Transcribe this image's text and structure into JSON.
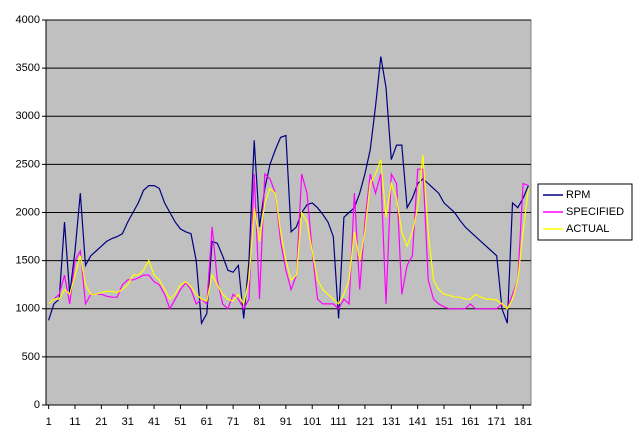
{
  "chart_data": {
    "type": "line",
    "x": [
      1,
      3,
      5,
      7,
      9,
      11,
      13,
      15,
      17,
      19,
      21,
      23,
      25,
      27,
      29,
      31,
      33,
      35,
      37,
      39,
      41,
      43,
      45,
      47,
      49,
      51,
      53,
      55,
      57,
      59,
      61,
      63,
      65,
      67,
      69,
      71,
      73,
      75,
      77,
      79,
      81,
      83,
      85,
      87,
      89,
      91,
      93,
      95,
      97,
      99,
      101,
      103,
      105,
      107,
      109,
      111,
      113,
      115,
      117,
      119,
      121,
      123,
      125,
      127,
      129,
      131,
      133,
      135,
      137,
      139,
      141,
      143,
      145,
      147,
      149,
      151,
      153,
      155,
      157,
      159,
      161,
      163,
      165,
      167,
      169,
      171,
      173,
      175,
      177,
      179,
      181,
      183
    ],
    "series": [
      {
        "name": "RPM",
        "color": "#000080",
        "values": [
          880,
          1050,
          1100,
          1900,
          1150,
          1600,
          2200,
          1450,
          1550,
          1600,
          1650,
          1700,
          1730,
          1750,
          1780,
          1900,
          2000,
          2100,
          2230,
          2280,
          2280,
          2250,
          2100,
          2000,
          1900,
          1830,
          1800,
          1780,
          1500,
          850,
          950,
          1700,
          1680,
          1550,
          1400,
          1380,
          1450,
          900,
          1500,
          2750,
          1850,
          2250,
          2500,
          2650,
          2780,
          2800,
          1800,
          1850,
          2000,
          2080,
          2100,
          2050,
          1980,
          1900,
          1750,
          900,
          1950,
          2000,
          2050,
          2200,
          2400,
          2650,
          3100,
          3620,
          3300,
          2550,
          2700,
          2700,
          2050,
          2150,
          2300,
          2350,
          2300,
          2250,
          2200,
          2100,
          2050,
          2000,
          1920,
          1850,
          1800,
          1750,
          1700,
          1650,
          1600,
          1550,
          1000,
          850,
          2100,
          2050,
          2150,
          2280
        ]
      },
      {
        "name": "SPECIFIED",
        "color": "#ff00ff",
        "values": [
          1050,
          1100,
          1150,
          1350,
          1050,
          1500,
          1600,
          1050,
          1150,
          1150,
          1150,
          1130,
          1120,
          1120,
          1250,
          1300,
          1300,
          1320,
          1350,
          1350,
          1280,
          1250,
          1150,
          1000,
          1100,
          1200,
          1270,
          1200,
          1050,
          1100,
          1050,
          1850,
          1300,
          1050,
          1000,
          1150,
          1100,
          1000,
          1100,
          2400,
          1100,
          2400,
          2350,
          2200,
          1700,
          1400,
          1200,
          1350,
          2400,
          2200,
          1600,
          1100,
          1050,
          1050,
          1050,
          1000,
          1100,
          1050,
          2200,
          1200,
          1900,
          2400,
          2200,
          2400,
          1050,
          2400,
          2300,
          1150,
          1450,
          1550,
          2450,
          2450,
          1300,
          1100,
          1050,
          1020,
          1000,
          1000,
          1000,
          1000,
          1050,
          1000,
          1000,
          1000,
          1000,
          1000,
          1050,
          1000,
          1150,
          1300,
          2300,
          2280
        ]
      },
      {
        "name": "ACTUAL",
        "color": "#ffff00",
        "values": [
          1050,
          1100,
          1100,
          1200,
          1150,
          1350,
          1550,
          1250,
          1150,
          1150,
          1170,
          1180,
          1180,
          1170,
          1200,
          1250,
          1350,
          1350,
          1400,
          1500,
          1350,
          1300,
          1200,
          1100,
          1150,
          1250,
          1280,
          1230,
          1150,
          1100,
          1080,
          1350,
          1250,
          1150,
          1100,
          1080,
          1150,
          1050,
          1300,
          2050,
          1700,
          2100,
          2250,
          2200,
          1800,
          1500,
          1300,
          1350,
          2000,
          1900,
          1600,
          1300,
          1200,
          1150,
          1100,
          1050,
          1150,
          1300,
          1800,
          1500,
          1800,
          2300,
          2400,
          2550,
          1950,
          2300,
          2150,
          1800,
          1650,
          1800,
          2050,
          2600,
          1800,
          1300,
          1200,
          1150,
          1140,
          1120,
          1120,
          1100,
          1100,
          1150,
          1120,
          1100,
          1100,
          1090,
          1050,
          1000,
          1100,
          1300,
          1800,
          2250
        ]
      }
    ],
    "xlim": [
      0,
      184
    ],
    "xticks": [
      1,
      11,
      21,
      31,
      41,
      51,
      61,
      71,
      81,
      91,
      101,
      111,
      121,
      131,
      141,
      151,
      161,
      171,
      181
    ],
    "ylim": [
      0,
      4000
    ],
    "yticks": [
      0,
      500,
      1000,
      1500,
      2000,
      2500,
      3000,
      3500,
      4000
    ],
    "grid": true,
    "legend": "right",
    "plot_background": "#c0c0c0"
  }
}
